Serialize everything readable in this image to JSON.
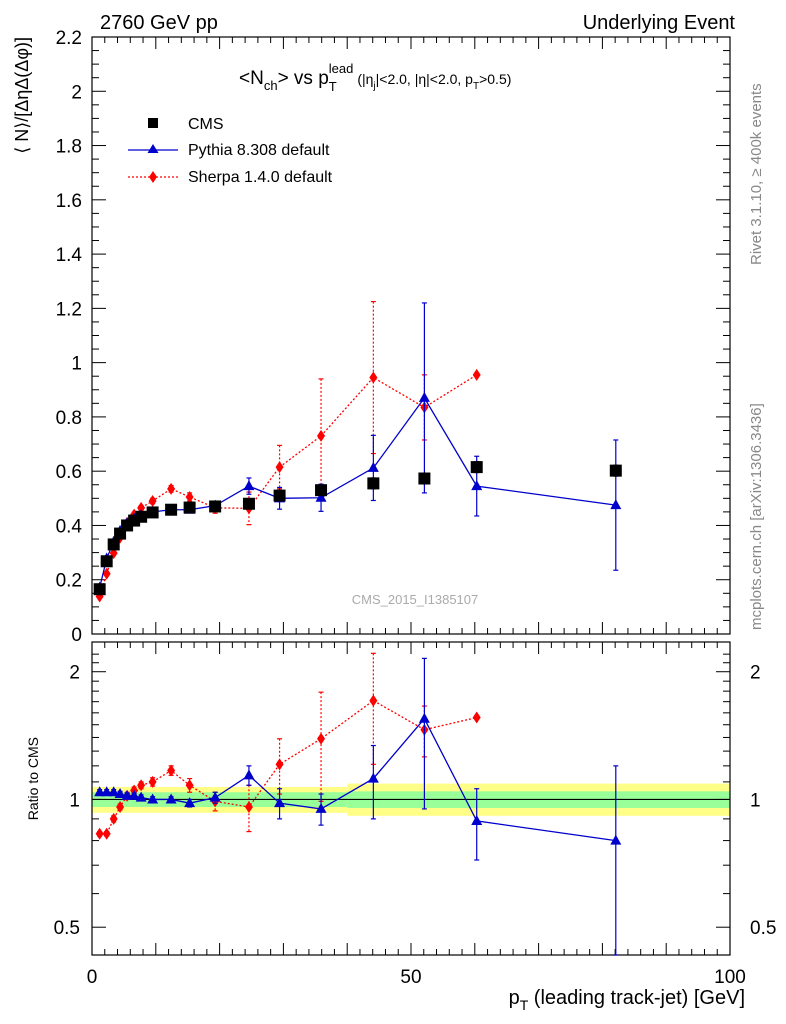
{
  "header": {
    "left": "2760 GeV pp",
    "right": "Underlying Event"
  },
  "side_labels": {
    "rivet": "Rivet 3.1.10, ≥ 400k events",
    "mcplots": "mcplots.cern.ch [arXiv:1306.3436]"
  },
  "plot_title": {
    "main": "<N",
    "main_sub": "ch",
    "mid": "> vs p",
    "p_sub": "T",
    "p_sup": "lead",
    "cuts": "(|η",
    "cuts_sub": "j",
    "cuts2": "|<2.0, |η|<2.0, p",
    "cuts_sub2": "T",
    "cuts3": ">0.5)"
  },
  "watermark": "CMS_2015_I1385107",
  "legend": {
    "cms": "CMS",
    "pythia": "Pythia 8.308 default",
    "sherpa": "Sherpa 1.4.0 default"
  },
  "colors": {
    "cms": "#000000",
    "pythia": "#0000cc",
    "sherpa": "#ff0000",
    "band_inner": "#99ff99",
    "band_outer": "#ffff88"
  },
  "chart_data": [
    {
      "type": "scatter",
      "panel": "main",
      "ylabel": "⟨ N⟩/[ΔηΔ(Δφ)]",
      "xlim": [
        0,
        100
      ],
      "ylim": [
        0,
        2.2
      ],
      "yticks": [
        "0",
        "0.2",
        "0.4",
        "0.6",
        "0.8",
        "1",
        "1.2",
        "1.4",
        "1.6",
        "1.8",
        "2",
        "2.2"
      ],
      "series": [
        {
          "name": "CMS",
          "x": [
            1.2,
            2.3,
            3.4,
            4.4,
            5.5,
            6.6,
            7.7,
            9.5,
            12.4,
            15.3,
            19.3,
            24.6,
            29.4,
            35.9,
            44.1,
            52.1,
            60.3,
            82.1
          ],
          "y": [
            0.165,
            0.268,
            0.33,
            0.37,
            0.4,
            0.418,
            0.432,
            0.448,
            0.458,
            0.466,
            0.47,
            0.48,
            0.51,
            0.53,
            0.555,
            0.573,
            0.615,
            0.602
          ],
          "yerr": [
            0.01,
            0.01,
            0.01,
            0.01,
            0.01,
            0.01,
            0.01,
            0.01,
            0.01,
            0.01,
            0.01,
            0.01,
            0.01,
            0.01,
            0.02,
            0.02,
            0.02,
            0.02
          ]
        },
        {
          "name": "Pythia 8.308 default",
          "x": [
            1.2,
            2.3,
            3.4,
            4.4,
            5.5,
            6.6,
            7.7,
            9.5,
            12.4,
            15.3,
            19.3,
            24.6,
            29.4,
            35.9,
            44.1,
            52.1,
            60.3,
            82.1
          ],
          "y": [
            0.171,
            0.278,
            0.34,
            0.38,
            0.408,
            0.425,
            0.438,
            0.45,
            0.458,
            0.458,
            0.473,
            0.545,
            0.5,
            0.502,
            0.612,
            0.87,
            0.545,
            0.475
          ],
          "yerr": [
            0.006,
            0.006,
            0.006,
            0.006,
            0.006,
            0.006,
            0.006,
            0.008,
            0.008,
            0.01,
            0.012,
            0.03,
            0.04,
            0.05,
            0.12,
            0.35,
            0.11,
            0.24
          ]
        },
        {
          "name": "Sherpa 1.4.0 default",
          "x": [
            1.2,
            2.3,
            3.4,
            4.4,
            5.5,
            6.6,
            7.7,
            9.5,
            12.4,
            15.3,
            19.3,
            24.6,
            29.4,
            35.9,
            44.1,
            52.1,
            60.3
          ],
          "y": [
            0.138,
            0.222,
            0.298,
            0.355,
            0.41,
            0.44,
            0.465,
            0.49,
            0.535,
            0.505,
            0.465,
            0.463,
            0.615,
            0.73,
            0.945,
            0.835,
            0.955
          ],
          "yerr": [
            0.004,
            0.004,
            0.005,
            0.006,
            0.007,
            0.008,
            0.008,
            0.01,
            0.012,
            0.015,
            0.02,
            0.06,
            0.08,
            0.21,
            0.28,
            0.12,
            0.0
          ]
        }
      ]
    },
    {
      "type": "scatter",
      "panel": "ratio",
      "ylabel": "Ratio to CMS",
      "xlabel": "p_T (leading track-jet) [GeV]",
      "xlim": [
        0,
        100
      ],
      "ylim": [
        0.43,
        2.35
      ],
      "yscale": "log",
      "yticks": [
        0.5,
        1,
        2
      ],
      "ytick_labels": [
        "0.5",
        "1",
        "2"
      ],
      "xticks": [
        0,
        50,
        100
      ],
      "xtick_labels": [
        "0",
        "50",
        "100"
      ],
      "band": {
        "edges_x": [
          0,
          40,
          100
        ],
        "inner": [
          [
            0.96,
            1.04
          ],
          [
            0.955,
            1.045
          ]
        ],
        "outer": [
          [
            0.93,
            1.07
          ],
          [
            0.915,
            1.09
          ]
        ]
      },
      "series": [
        {
          "name": "Pythia 8.308 default",
          "x": [
            1.2,
            2.3,
            3.4,
            4.4,
            5.5,
            6.6,
            7.7,
            9.5,
            12.4,
            15.3,
            19.3,
            24.6,
            29.4,
            35.9,
            44.1,
            52.1,
            60.3,
            82.1
          ],
          "y": [
            1.04,
            1.04,
            1.04,
            1.03,
            1.02,
            1.02,
            1.01,
            1.0,
            1.0,
            0.98,
            1.01,
            1.14,
            0.98,
            0.95,
            1.12,
            1.55,
            0.89,
            0.8
          ],
          "yerr": [
            0.015,
            0.015,
            0.015,
            0.015,
            0.015,
            0.015,
            0.015,
            0.015,
            0.015,
            0.02,
            0.03,
            0.06,
            0.08,
            0.08,
            0.22,
            0.6,
            0.17,
            0.4
          ]
        },
        {
          "name": "Sherpa 1.4.0 default",
          "x": [
            1.2,
            2.3,
            3.4,
            4.4,
            5.5,
            6.6,
            7.7,
            9.5,
            12.4,
            15.3,
            19.3,
            24.6,
            29.4,
            35.9,
            44.1,
            52.1,
            60.3
          ],
          "y": [
            0.83,
            0.83,
            0.9,
            0.96,
            1.02,
            1.05,
            1.08,
            1.1,
            1.17,
            1.08,
            0.99,
            0.96,
            1.21,
            1.39,
            1.71,
            1.46,
            1.56
          ],
          "yerr": [
            0.01,
            0.01,
            0.015,
            0.015,
            0.02,
            0.02,
            0.02,
            0.025,
            0.03,
            0.04,
            0.05,
            0.12,
            0.18,
            0.4,
            0.5,
            0.2,
            0.0
          ]
        }
      ]
    }
  ]
}
